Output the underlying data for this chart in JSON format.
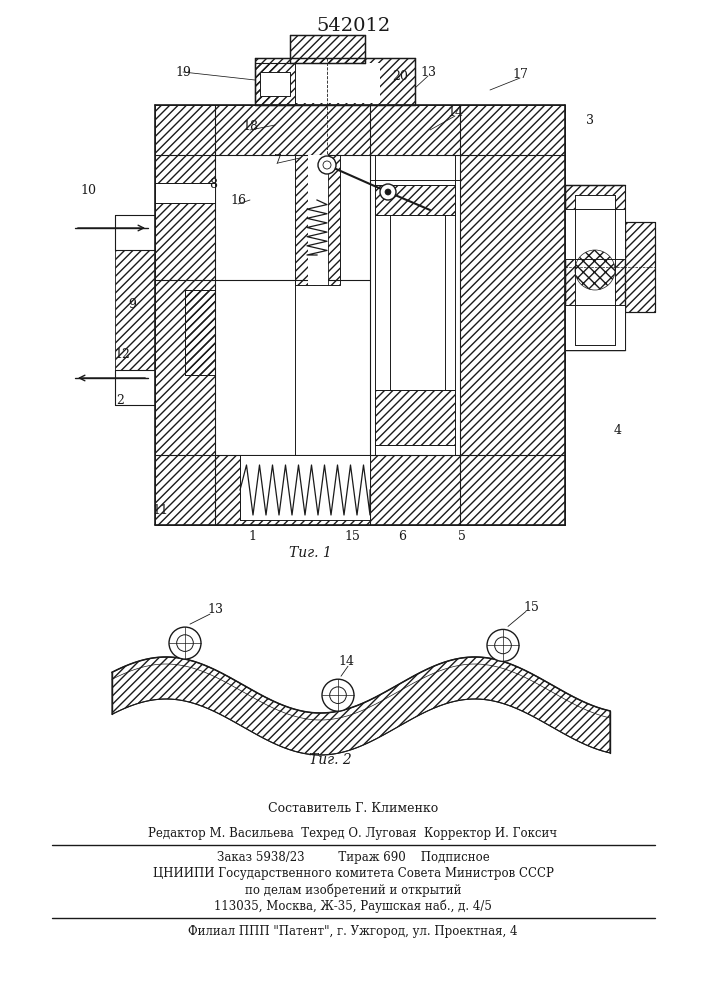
{
  "patent_number": "542012",
  "fig1_caption": "Τиг. 1",
  "fig2_caption": "Τиг. 2",
  "footer_line1": "Составитель Г. Клименко",
  "footer_line2": "Редактор М. Васильева  Техред О. Луговая  Корректор И. Гоксич",
  "footer_line3": "Заказ 5938/23         Тираж 690    Подписное",
  "footer_line4": "ЦНИИПИ Государственного комитета Совета Министров СССР",
  "footer_line5": "по делам изобретений и открытий",
  "footer_line6": "113035, Москва, Ж-35, Раушская наб., д. 4/5",
  "footer_line7": "Филиал ППП \"Патент\", г. Ужгород, ул. Проектная, 4",
  "bg_color": "#ffffff",
  "line_color": "#1a1a1a"
}
